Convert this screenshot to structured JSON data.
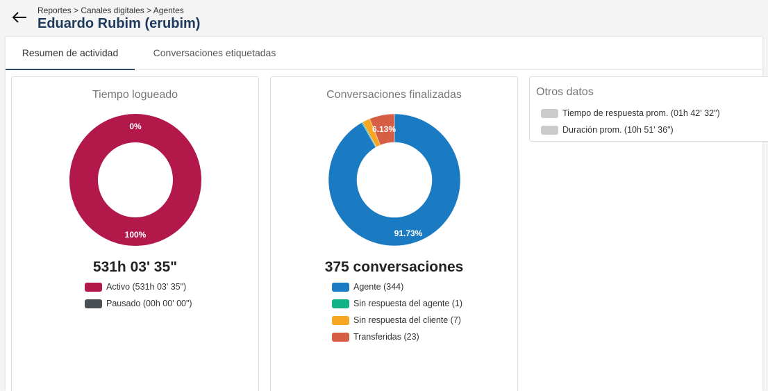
{
  "header": {
    "breadcrumb": "Reportes > Canales digitales > Agentes",
    "title": "Eduardo Rubim (erubim)"
  },
  "tabs": [
    {
      "label": "Resumen de actividad"
    },
    {
      "label": "Conversaciones etiquetadas"
    }
  ],
  "logged_time": {
    "title": "Tiempo logueado",
    "total": "531h 03' 35\"",
    "legend": [
      {
        "label": "Activo (531h 03' 35\")",
        "color": "#b2184a"
      },
      {
        "label": "Pausado (00h 00' 00\")",
        "color": "#4a4f55"
      }
    ]
  },
  "conversations": {
    "title": "Conversaciones finalizadas",
    "total": "375 conversaciones",
    "legend": [
      {
        "label": "Agente (344)",
        "color": "#1b7bc2"
      },
      {
        "label": "Sin respuesta del agente (1)",
        "color": "#12b286"
      },
      {
        "label": "Sin respuesta del cliente (7)",
        "color": "#f6a623"
      },
      {
        "label": "Transferidas (23)",
        "color": "#d55e45"
      }
    ]
  },
  "other": {
    "title": "Otros datos",
    "items": [
      {
        "label": "Tiempo de respuesta prom. (01h 42' 32\")",
        "color": "#cccccc"
      },
      {
        "label": "Duración prom. (10h 51' 36\")",
        "color": "#cccccc"
      }
    ]
  },
  "chart_data": [
    {
      "type": "pie",
      "title": "Tiempo logueado",
      "categories": [
        "Activo (531h 03' 35\")",
        "Pausado (00h 00' 00\")"
      ],
      "values": [
        100,
        0
      ],
      "slice_labels": [
        "100%",
        "0%"
      ],
      "colors": [
        "#b2184a",
        "#4a4f55"
      ],
      "donut": true
    },
    {
      "type": "pie",
      "title": "Conversaciones finalizadas",
      "categories": [
        "Agente (344)",
        "Sin respuesta del agente (1)",
        "Sin respuesta del cliente (7)",
        "Transferidas (23)"
      ],
      "values": [
        344,
        1,
        7,
        23
      ],
      "slice_labels": [
        "91.73%",
        "",
        "",
        "6.13%"
      ],
      "colors": [
        "#1b7bc2",
        "#12b286",
        "#f6a623",
        "#d55e45"
      ],
      "donut": true
    }
  ]
}
